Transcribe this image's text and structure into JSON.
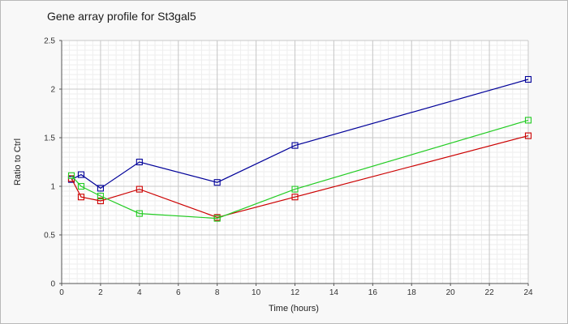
{
  "chart_data": {
    "type": "line",
    "title": "Gene array profile for St3gal5",
    "xlabel": "Time (hours)",
    "ylabel": "Ratio to Ctrl",
    "xlim": [
      0,
      24
    ],
    "ylim": [
      0,
      2.5
    ],
    "xticks": [
      0,
      2,
      4,
      6,
      8,
      10,
      12,
      14,
      16,
      18,
      20,
      22,
      24
    ],
    "yticks": [
      0,
      0.5,
      1,
      1.5,
      2,
      2.5
    ],
    "ytick_labels": [
      "0",
      "0.5",
      "1",
      "1.5",
      "2",
      "2.5"
    ],
    "grid": true,
    "series": [
      {
        "color": "#000099",
        "x": [
          0.5,
          1,
          2,
          4,
          8,
          12,
          24
        ],
        "y": [
          1.07,
          1.12,
          0.98,
          1.25,
          1.04,
          1.42,
          2.1
        ]
      },
      {
        "color": "#cc0000",
        "x": [
          0.5,
          1,
          2,
          4,
          8,
          12,
          24
        ],
        "y": [
          1.08,
          0.89,
          0.85,
          0.97,
          0.68,
          0.89,
          1.52
        ]
      },
      {
        "color": "#22cc22",
        "x": [
          0.5,
          1,
          2,
          4,
          8,
          12,
          24
        ],
        "y": [
          1.11,
          1.0,
          0.9,
          0.72,
          0.67,
          0.97,
          1.68
        ]
      }
    ]
  }
}
